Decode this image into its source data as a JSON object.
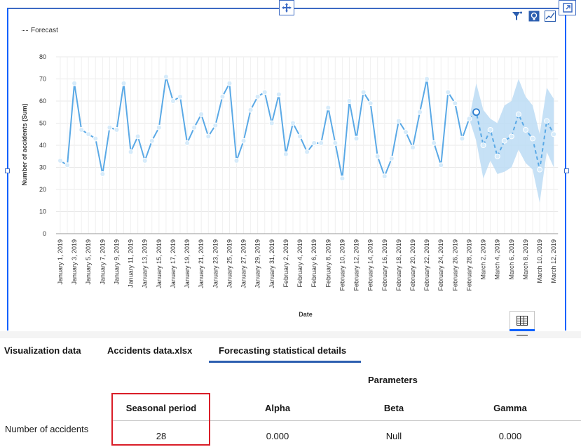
{
  "legend": {
    "forecast_label": "Forecast"
  },
  "toolbar": {
    "icons": [
      "filter-icon",
      "insight-icon",
      "chart-type-icon",
      "expand-icon",
      "move-icon",
      "table-view-icon"
    ]
  },
  "colors": {
    "series": "#5aa9e6",
    "band": "#bcdcf5",
    "frame": "#0f62fe",
    "highlight": "#da1e28",
    "tab_underline": "#2d5fb0"
  },
  "chart_data": {
    "type": "line",
    "xlabel": "Date",
    "ylabel": "Number of accidents (Sum)",
    "ylim": [
      0,
      80
    ],
    "yticks": [
      0,
      10,
      20,
      30,
      40,
      50,
      60,
      70,
      80
    ],
    "grid": true,
    "legend_placement": "top-left",
    "x_tick_labels": [
      "January 1, 2019",
      "January 3, 2019",
      "January 5, 2019",
      "January 7, 2019",
      "January 9, 2019",
      "January 11, 2019",
      "January 13, 2019",
      "January 15, 2019",
      "January 17, 2019",
      "January 19, 2019",
      "January 21, 2019",
      "January 23, 2019",
      "January 25, 2019",
      "January 27, 2019",
      "January 29, 2019",
      "January 31, 2019",
      "February 2, 2019",
      "February 4, 2019",
      "February 6, 2019",
      "February 8, 2019",
      "February 10, 2019",
      "February 12, 2019",
      "February 14, 2019",
      "February 16, 2019",
      "February 18, 2019",
      "February 20, 2019",
      "February 22, 2019",
      "February 24, 2019",
      "February 26, 2019",
      "February 28, 2019",
      "March 2, 2019",
      "March 4, 2019",
      "March 6, 2019",
      "March 8, 2019",
      "March 10, 2019",
      "March 12, 2019"
    ],
    "actual": [
      33,
      31,
      68,
      47,
      45,
      43,
      27,
      48,
      47,
      68,
      37,
      44,
      33,
      42,
      48,
      71,
      60,
      62,
      41,
      48,
      54,
      44,
      49,
      62,
      68,
      33,
      42,
      56,
      62,
      64,
      50,
      63,
      36,
      50,
      44,
      37,
      41,
      41,
      57,
      41,
      25,
      60,
      43,
      64,
      59,
      35,
      26,
      34,
      51,
      46,
      39,
      55,
      70,
      41,
      31,
      64,
      59,
      43,
      52
    ],
    "forecast": {
      "name": "Forecast",
      "values": [
        55,
        40,
        47,
        35,
        42,
        44,
        54,
        47,
        43,
        29,
        51,
        45
      ],
      "upper": [
        68,
        56,
        52,
        50,
        58,
        60,
        70,
        62,
        58,
        45,
        66,
        61
      ],
      "lower": [
        42,
        25,
        33,
        27,
        28,
        30,
        38,
        32,
        29,
        14,
        37,
        30
      ]
    }
  },
  "tabs": [
    {
      "label": "Visualization data"
    },
    {
      "label": "Accidents data.xlsx"
    },
    {
      "label": "Forecasting statistical details"
    }
  ],
  "stats": {
    "parameters_label": "Parameters",
    "columns": [
      "Seasonal period",
      "Alpha",
      "Beta",
      "Gamma"
    ],
    "row_label": "Number of accidents",
    "values": [
      "28",
      "0.000",
      "Null",
      "0.000"
    ]
  }
}
